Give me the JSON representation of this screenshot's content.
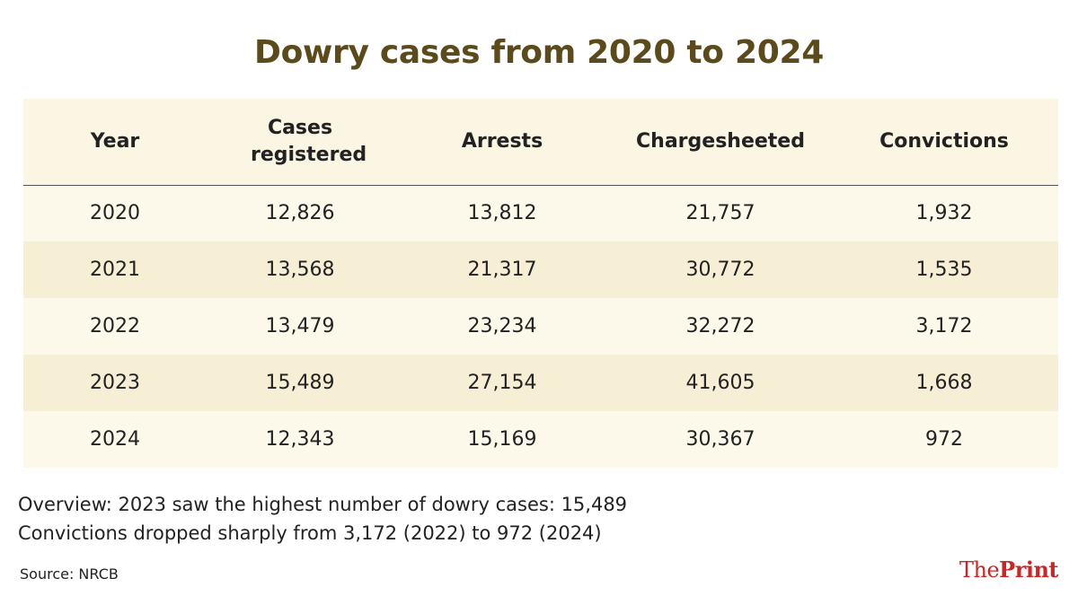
{
  "title": "Dowry cases from 2020 to 2024",
  "chart_data": {
    "type": "table",
    "title": "Dowry cases from 2020 to 2024",
    "columns": [
      "Year",
      "Cases registered",
      "Arrests",
      "Chargesheeted",
      "Convictions"
    ],
    "rows": [
      [
        "2020",
        "12,826",
        "13,812",
        "21,757",
        "1,932"
      ],
      [
        "2021",
        "13,568",
        "21,317",
        "30,772",
        "1,535"
      ],
      [
        "2022",
        "13,479",
        "23,234",
        "32,272",
        "3,172"
      ],
      [
        "2023",
        "15,489",
        "27,154",
        "41,605",
        "1,668"
      ],
      [
        "2024",
        "12,343",
        "15,169",
        "30,367",
        "972"
      ]
    ]
  },
  "notes": {
    "line1_label": "Overview:",
    "line1_text": "2023 saw the highest number of dowry cases: 15,489",
    "line2_text": "Convictions dropped sharply from 3,172 (2022) to 972 (2024)"
  },
  "source": "Source: NRCB",
  "brand": {
    "part1": "The",
    "part2": "Print"
  },
  "colors": {
    "title": "#5a4a1c",
    "header_bg": "#fbf6e3",
    "row_odd": "#fcf8ea",
    "row_even": "#f7eed6",
    "brand": "#c62828"
  }
}
